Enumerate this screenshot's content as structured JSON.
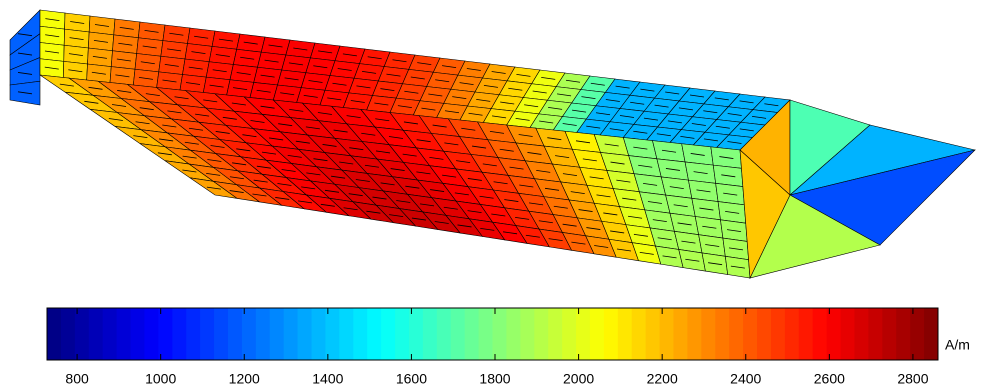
{
  "chart_data": {
    "type": "colorbar",
    "xlim": [
      728,
      2860
    ],
    "xticks": [
      800,
      1000,
      1200,
      1400,
      1600,
      1800,
      2000,
      2200,
      2400,
      2600,
      2800
    ],
    "unit": "A/m"
  }
}
